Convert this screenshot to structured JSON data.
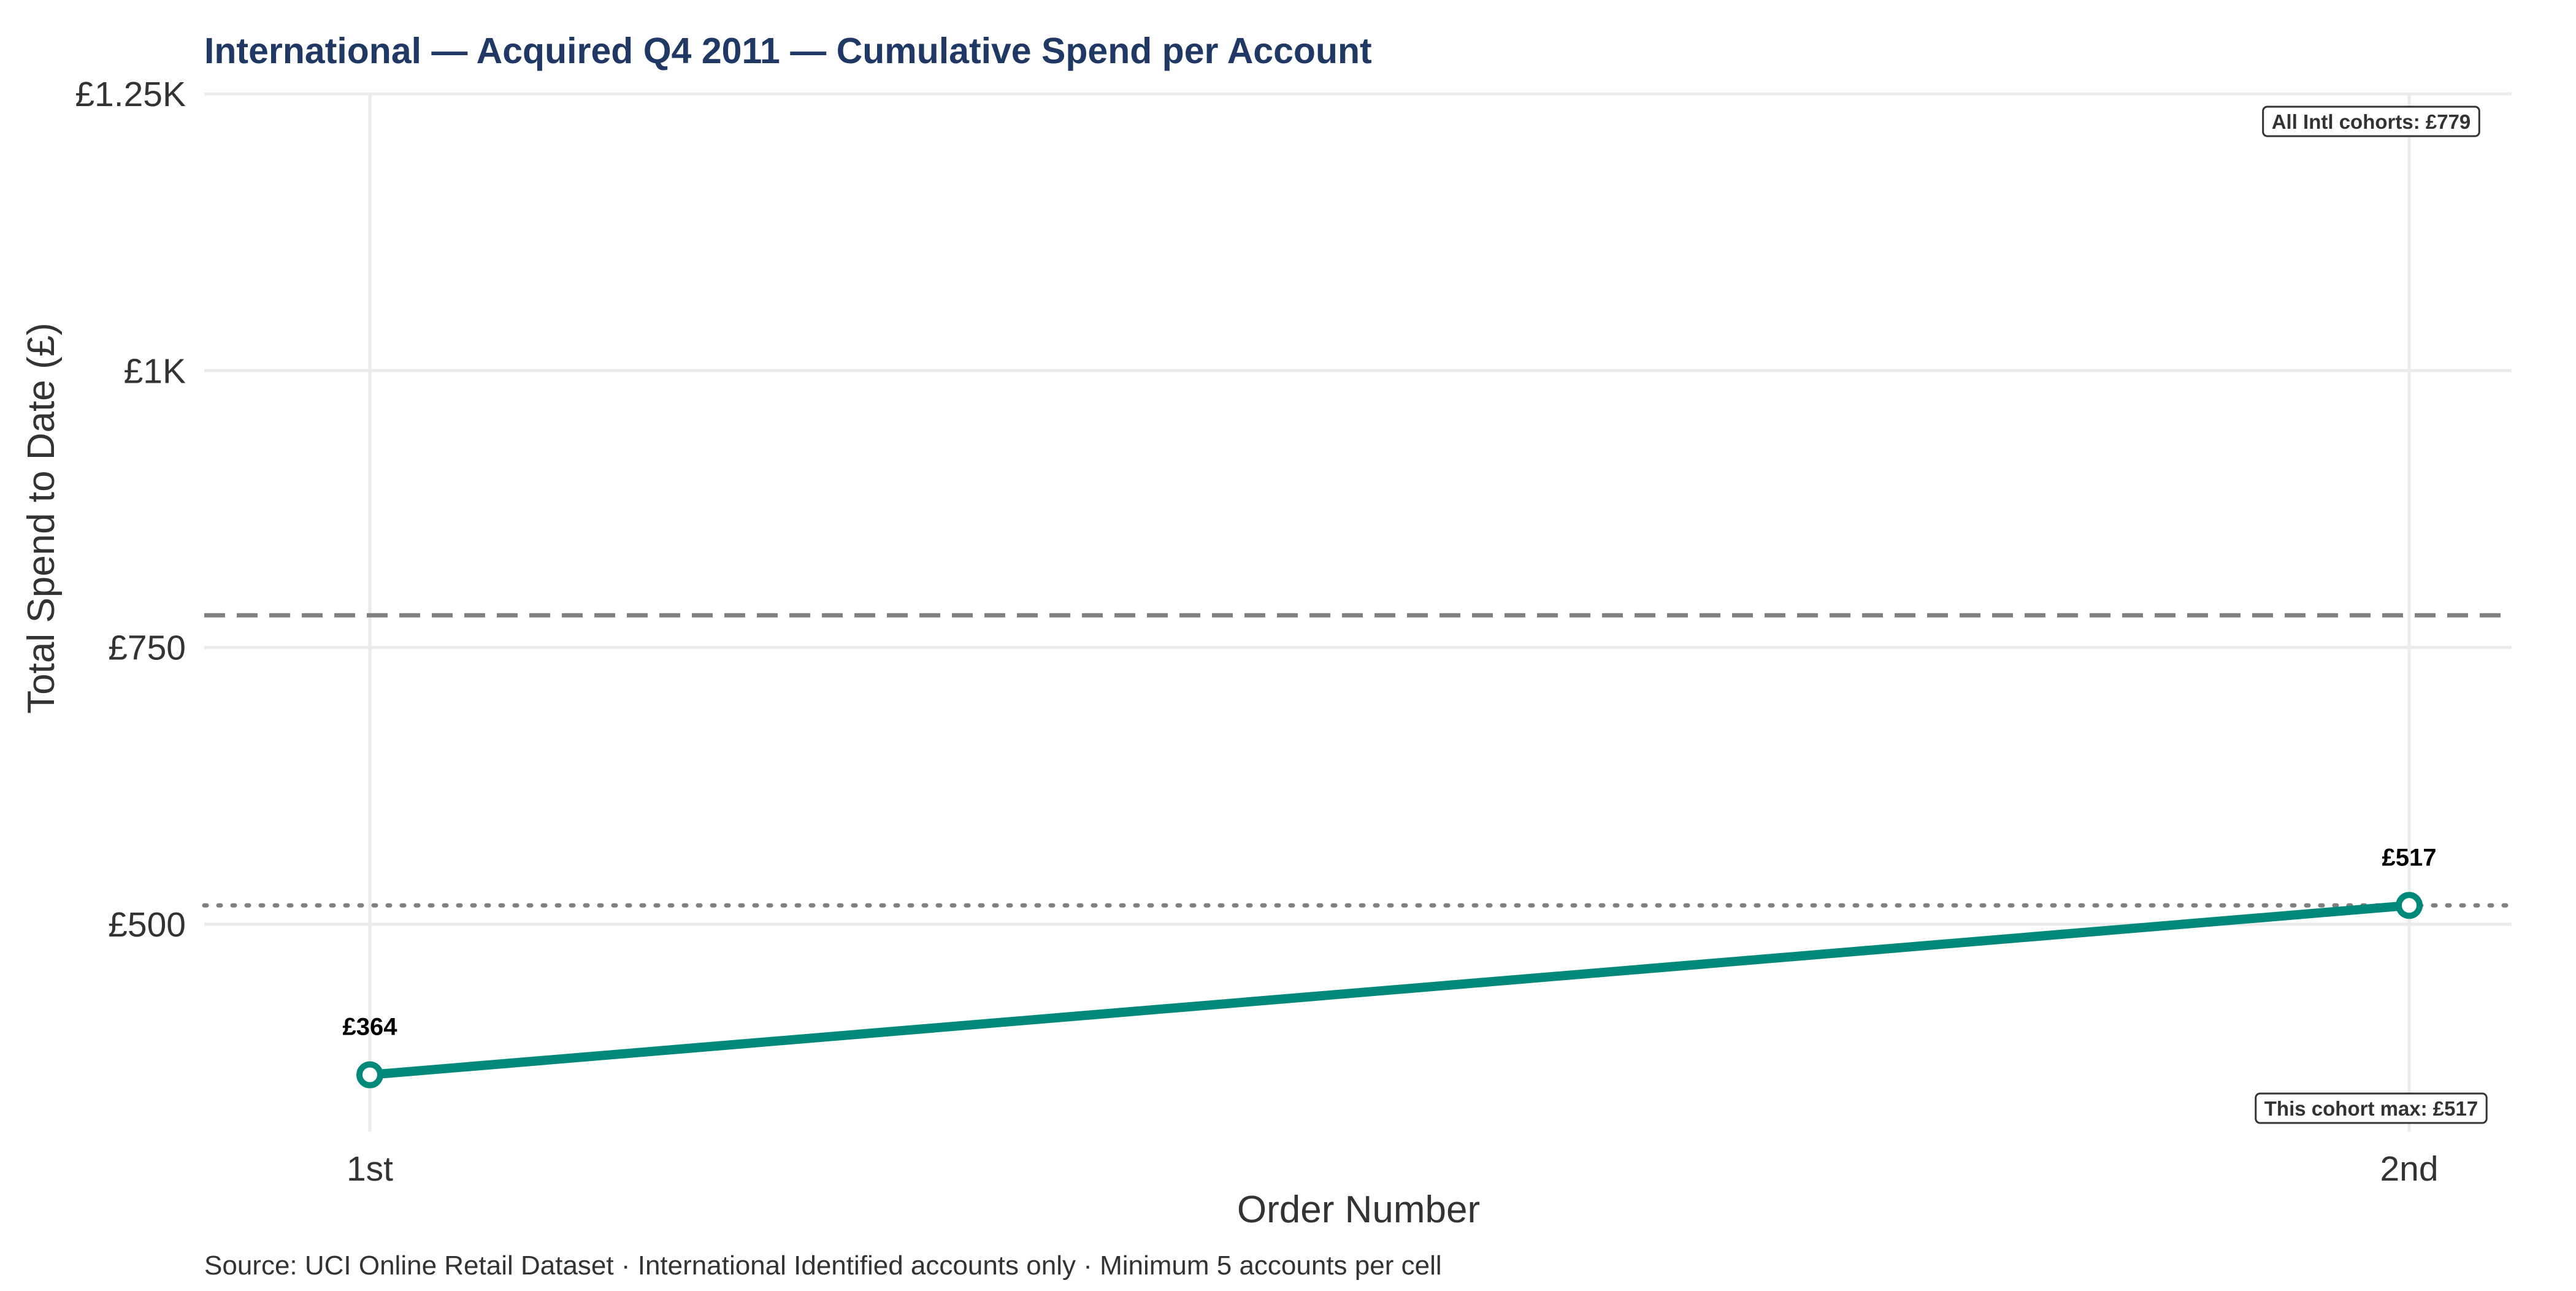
{
  "chart_data": {
    "type": "line",
    "title": "International — Acquired Q4 2011 — Cumulative Spend per Account",
    "xlabel": "Order Number",
    "ylabel": "Total Spend to Date (£)",
    "caption": "Source: UCI Online Retail Dataset · International Identified accounts only · Minimum 5 accounts per cell",
    "categories": [
      "1st",
      "2nd"
    ],
    "series": [
      {
        "values": [
          364,
          517
        ],
        "point_labels": [
          "£364",
          "£517"
        ]
      }
    ],
    "ylim": [
      325,
      1250
    ],
    "y_ticks": [
      500,
      750,
      1000,
      1250
    ],
    "y_tick_labels": [
      "£500",
      "£750",
      "£1K",
      "£1.25K"
    ],
    "grid": true,
    "reference_lines": [
      {
        "id": "all-cohorts",
        "value": 779,
        "style": "dashed",
        "label": "All Intl cohorts: £779"
      },
      {
        "id": "cohort-max",
        "value": 517,
        "style": "dotted",
        "label": "This cohort max: £517"
      }
    ],
    "colors": {
      "series": "#00897b",
      "title": "#1f3864",
      "reference": "#808080",
      "grid": "#ebebeb",
      "text": "#333333"
    }
  }
}
